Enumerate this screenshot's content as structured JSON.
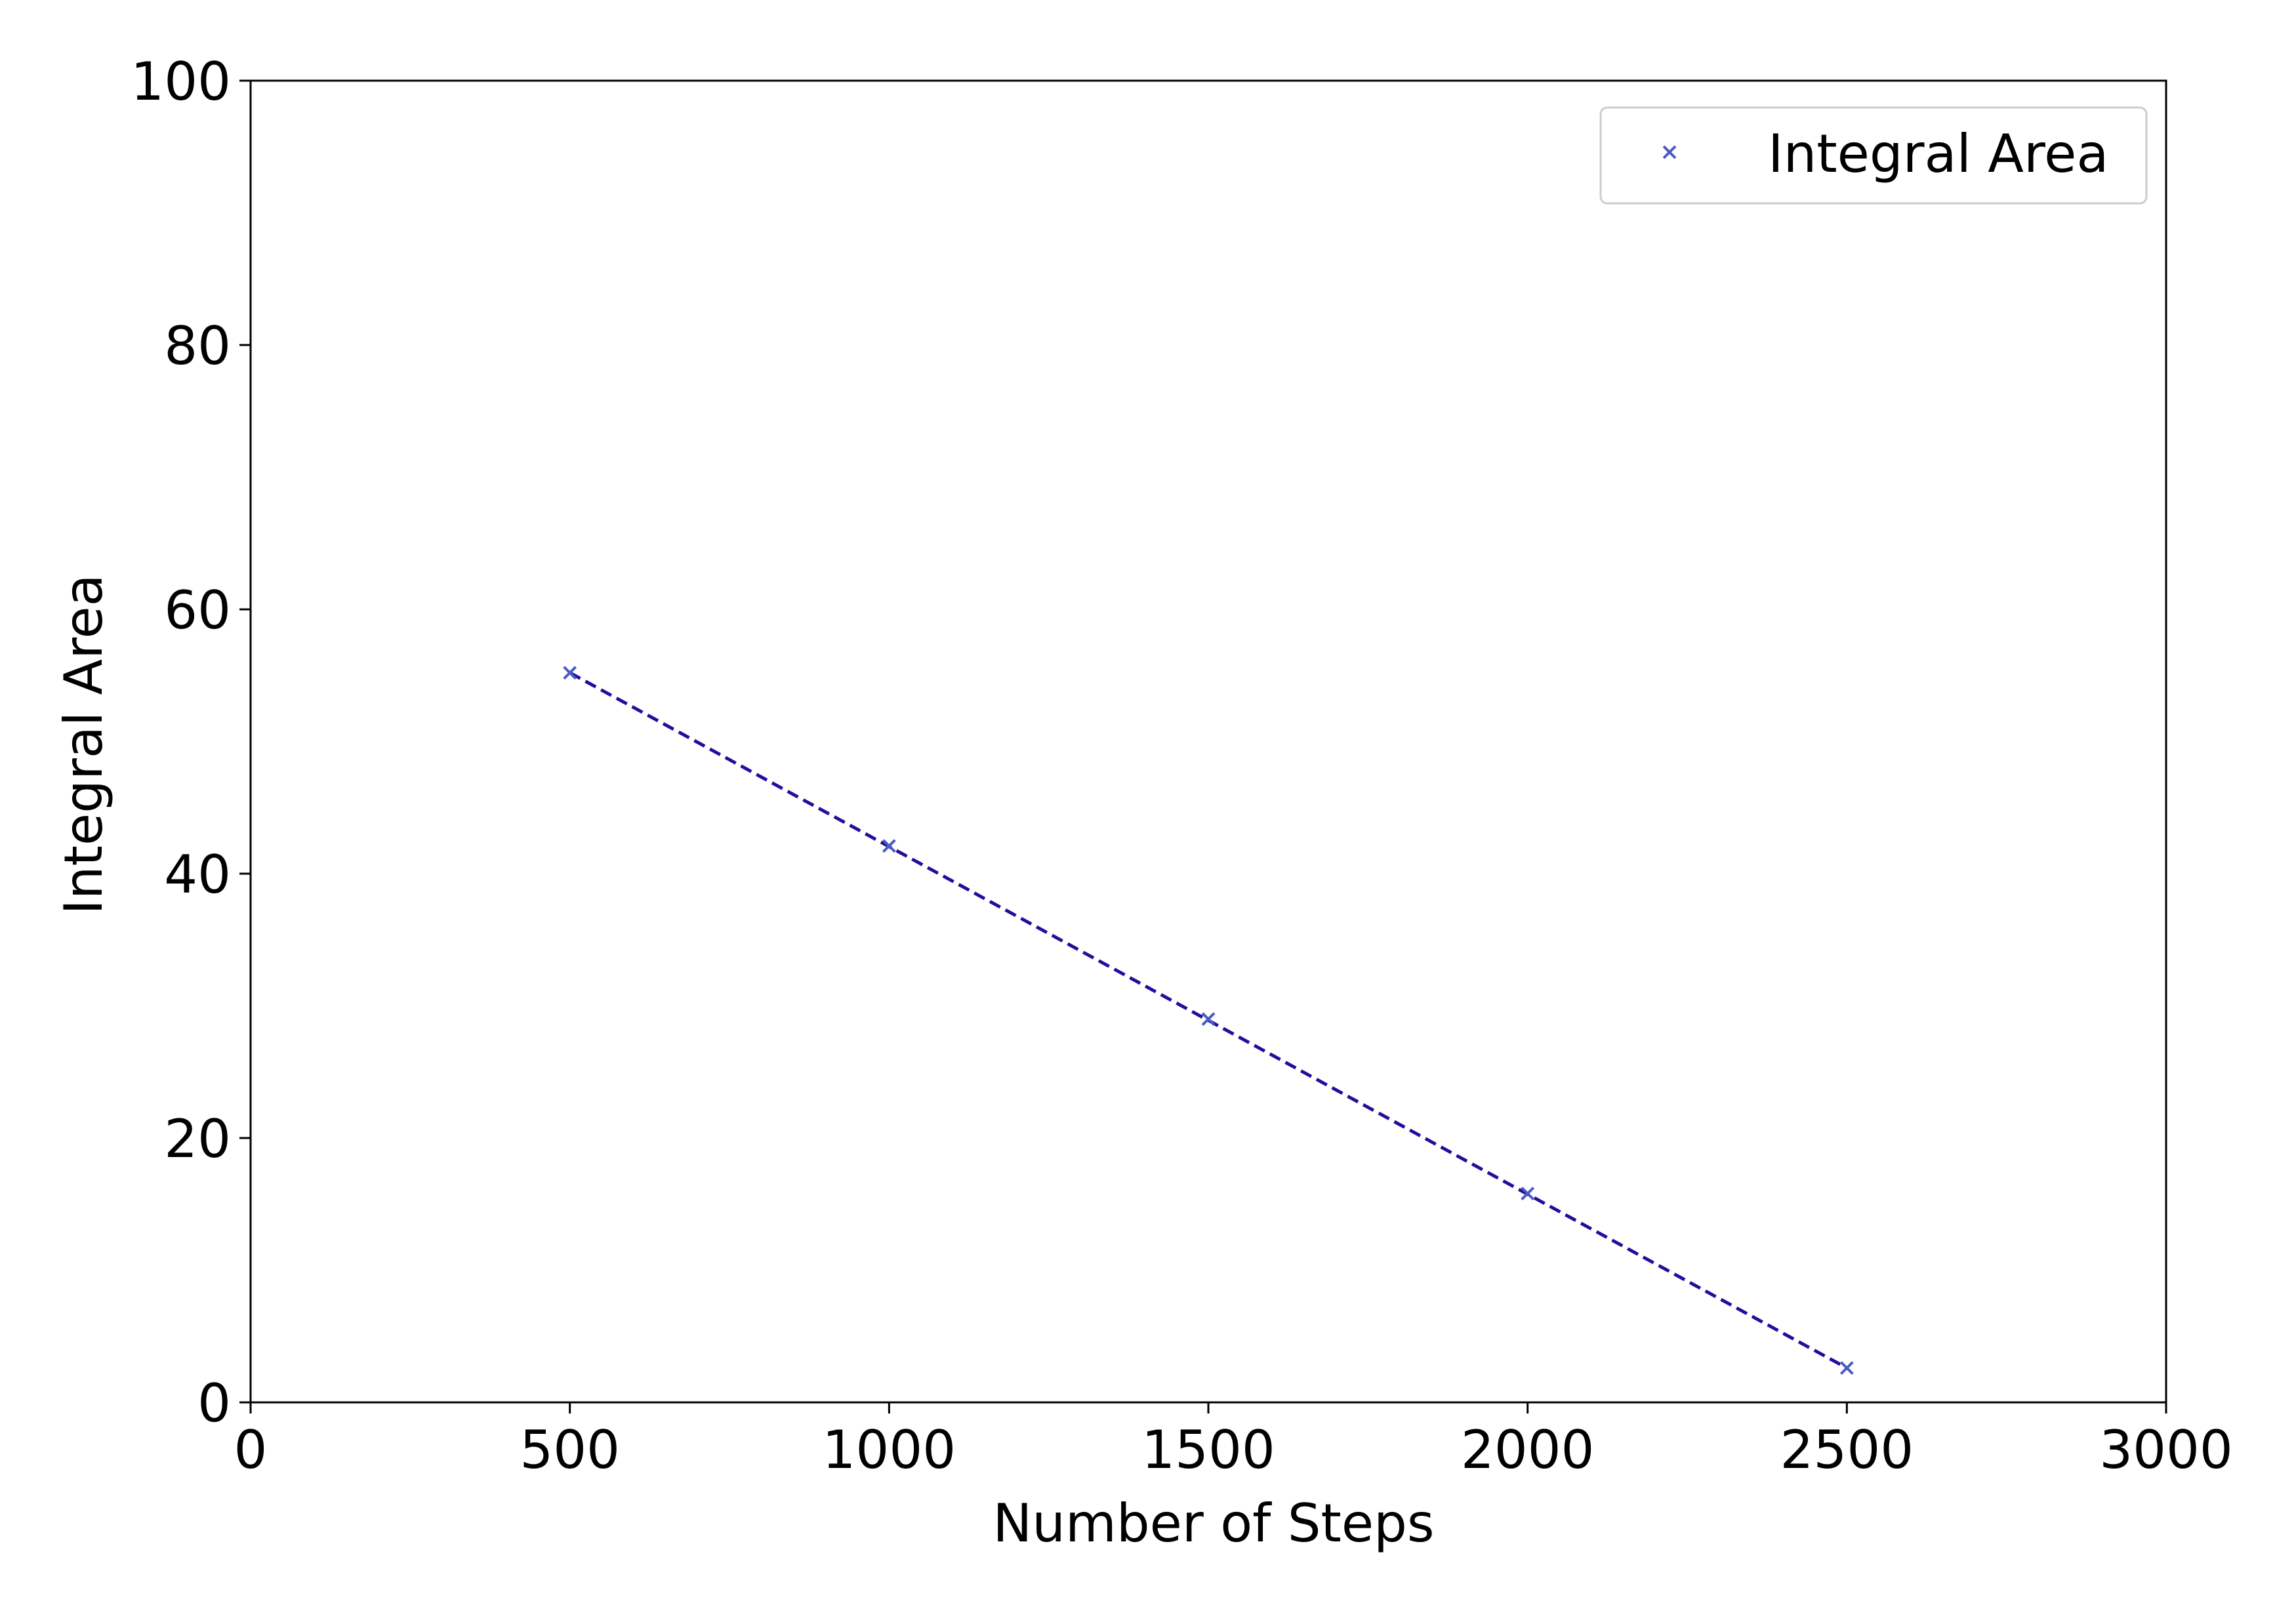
{
  "chart_data": {
    "type": "scatter",
    "title": "",
    "xlabel": "Number of Steps",
    "ylabel": "Integral Area",
    "xlim": [
      0,
      3000
    ],
    "ylim": [
      0,
      100
    ],
    "xticks": [
      "0",
      "500",
      "1000",
      "1500",
      "2000",
      "2500",
      "3000"
    ],
    "yticks": [
      "0",
      "20",
      "40",
      "60",
      "80",
      "100"
    ],
    "grid": false,
    "legend_position": "top-right",
    "series": [
      {
        "name": "Integral Area",
        "marker": "x",
        "color": "#4a5bc4",
        "x": [
          500,
          1000,
          1500,
          2000,
          2500
        ],
        "y": [
          55.2,
          42.1,
          29.0,
          15.8,
          2.6
        ]
      }
    ],
    "fit_line": {
      "style": "dashed",
      "color": "#1f0f9c",
      "x": [
        500,
        2500
      ],
      "y": [
        55.2,
        2.6
      ]
    }
  }
}
